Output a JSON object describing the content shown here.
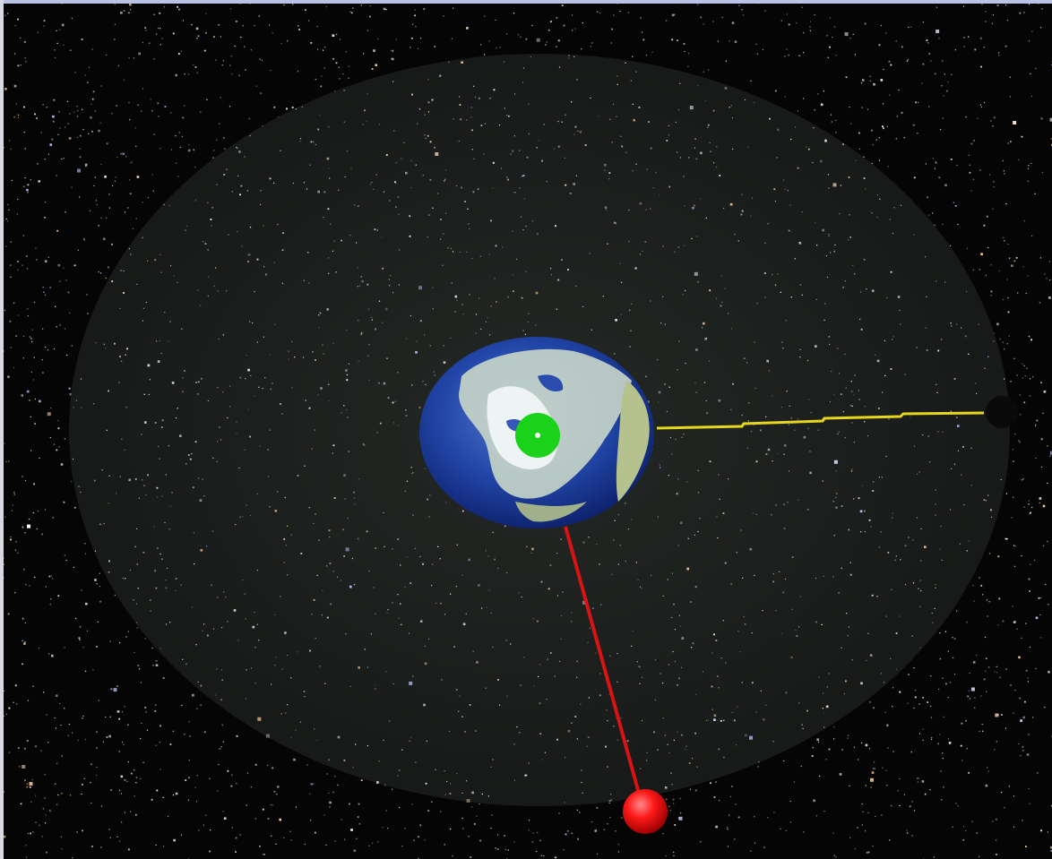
{
  "scene": {
    "background": "starfield",
    "colors": {
      "space": "#050505",
      "disc": "#1e221f",
      "earth_ocean": "#1f3fa0",
      "earth_land": "#a9b88c",
      "earth_cloud": "#e8eef0",
      "marker_green": "#1bd21b",
      "marker_red": "#ff1a1a",
      "line_yellow": "#e6d61d",
      "line_red": "#d61414",
      "frame_top": "#b9c3e6"
    },
    "objects": {
      "earth": "earth-globe",
      "green_marker": "green-dot-marker",
      "red_marker": "red-sphere-marker",
      "yellow_line": "yellow-orbit-line",
      "red_line": "red-link-line",
      "disc": "translucent-disc"
    }
  }
}
